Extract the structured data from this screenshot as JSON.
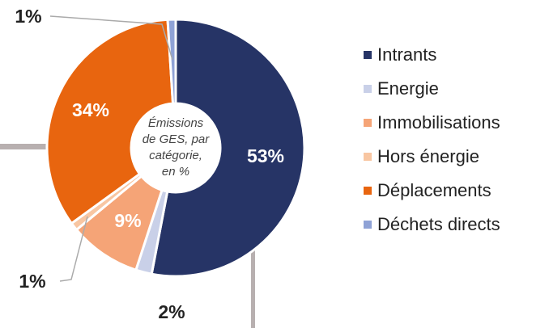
{
  "chart_data": {
    "type": "donut",
    "center_label": [
      "Émissions",
      "de GES, par",
      "catégorie,",
      "en %"
    ],
    "categories": [
      "Intrants",
      "Energie",
      "Immobilisations",
      "Hors énergie",
      "Déplacements",
      "Déchets directs"
    ],
    "values": [
      53,
      2,
      9,
      1,
      34,
      1
    ],
    "value_labels": [
      "53%",
      "2%",
      "9%",
      "1%",
      "34%",
      "1%"
    ],
    "colors": [
      "#263466",
      "#c9d0e8",
      "#f5a477",
      "#f8c6a2",
      "#e8650f",
      "#8fa2d6"
    ],
    "legend": "right"
  }
}
